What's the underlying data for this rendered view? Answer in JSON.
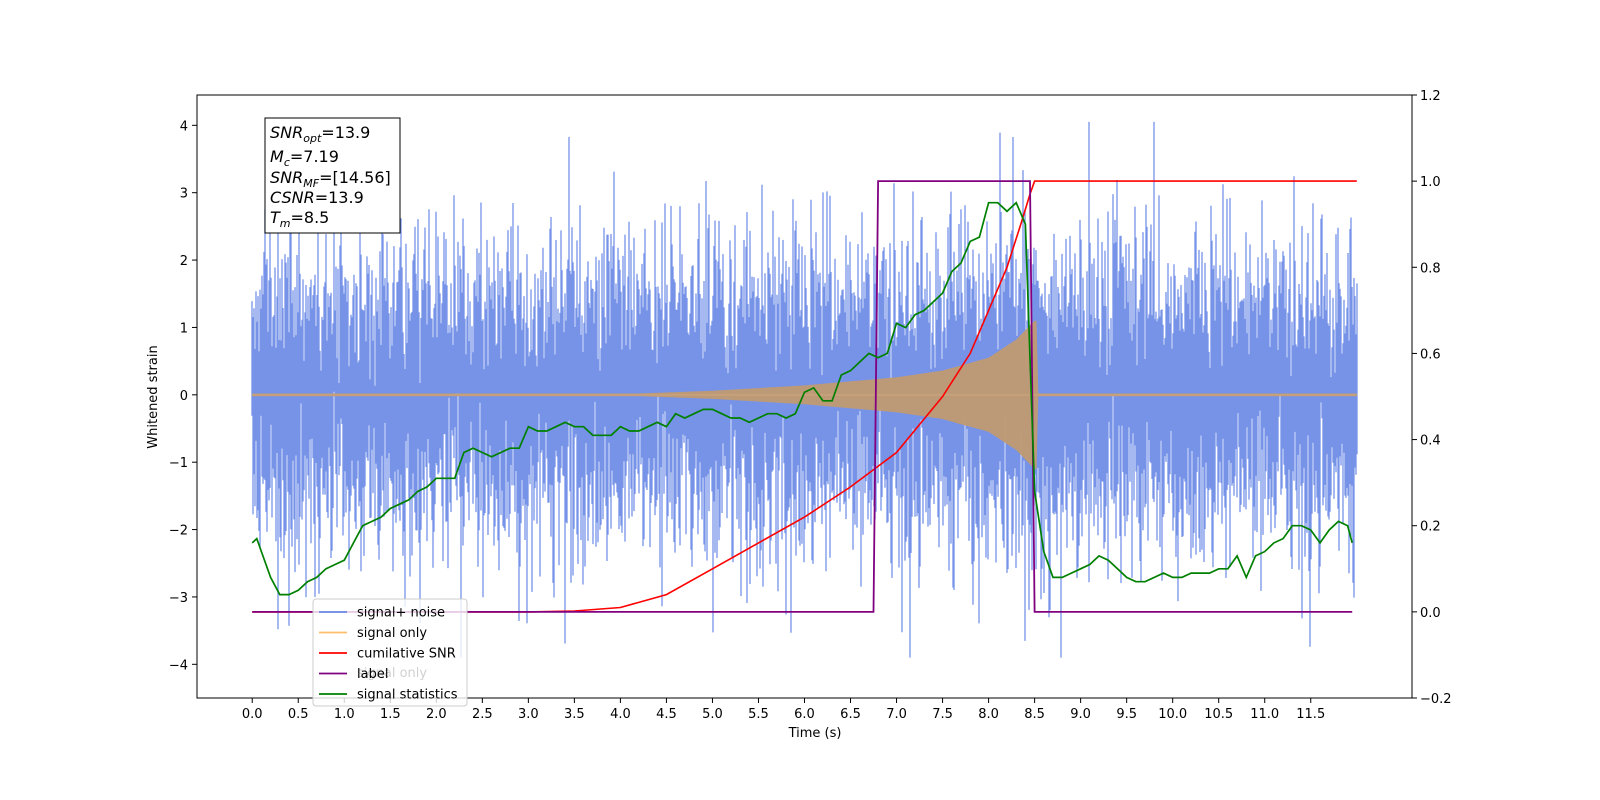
{
  "chart_data": {
    "type": "line",
    "xlabel": "Time (s)",
    "ylabel": "Whitened strain",
    "xlim": [
      -0.6,
      12.6
    ],
    "ylim": [
      -4.5,
      4.45
    ],
    "y2lim": [
      -0.2,
      1.2
    ],
    "x_ticks": [
      "0.0",
      "0.5",
      "1.0",
      "1.5",
      "2.0",
      "2.5",
      "3.0",
      "3.5",
      "4.0",
      "4.5",
      "5.0",
      "5.5",
      "6.0",
      "6.5",
      "7.0",
      "7.5",
      "8.0",
      "8.5",
      "9.0",
      "9.5",
      "10.0",
      "10.5",
      "11.0",
      "11.5"
    ],
    "y_ticks": [
      "4",
      "3",
      "2",
      "1",
      "0",
      "−1",
      "−2",
      "−3",
      "−4"
    ],
    "y2_ticks": [
      "1.2",
      "1.0",
      "0.8",
      "0.6",
      "0.4",
      "0.2",
      "0.0",
      "−0.2"
    ],
    "annotation": {
      "lines": [
        {
          "sym": "SNR",
          "sub": "opt",
          "val": "=13.9"
        },
        {
          "sym": "M",
          "sub": "c",
          "val": "=7.19"
        },
        {
          "sym": "SNR",
          "sub": "MF",
          "val": "=[14.56]"
        },
        {
          "sym": "CSNR",
          "sub": "",
          "val": "=13.9"
        },
        {
          "sym": "T",
          "sub": "m",
          "val": "=8.5"
        }
      ]
    },
    "legend": {
      "placement": "lower-left",
      "entries": [
        {
          "label": "signal+ noise",
          "color": "#6a8ae6"
        },
        {
          "label": "signal only",
          "color": "#ffbe6a"
        },
        {
          "label": "cumilative SNR",
          "color": "#ff0000"
        },
        {
          "label": "label",
          "color": "#800080"
        },
        {
          "label": "signal statistics",
          "color": "#008000"
        }
      ],
      "hidden_text": "signal only"
    },
    "series": [
      {
        "name": "signal+ noise",
        "axis": "left",
        "color": "#6a8ae6",
        "description": "white noise of roughly unit variance plus signal, sampled from 0 to 12 s",
        "x_range": [
          0.0,
          12.0
        ],
        "std": 1.0
      },
      {
        "name": "signal only",
        "axis": "left",
        "color": "#ffbe6a",
        "description": "chirp with amplitude growing toward merger",
        "x_range": [
          0.0,
          12.0
        ],
        "merger_time": 8.5,
        "envelope": {
          "x": [
            0.0,
            4.0,
            5.0,
            6.0,
            7.0,
            7.5,
            8.0,
            8.3,
            8.5
          ],
          "y": [
            0.0,
            0.01,
            0.06,
            0.14,
            0.26,
            0.36,
            0.55,
            0.82,
            1.1
          ]
        }
      },
      {
        "name": "cumilative SNR",
        "axis": "right",
        "color": "#ff0000",
        "x": [
          0.0,
          3.0,
          3.5,
          4.0,
          4.5,
          5.0,
          5.5,
          6.0,
          6.5,
          7.0,
          7.5,
          7.8,
          8.0,
          8.2,
          8.35,
          8.45,
          8.5,
          8.52,
          12.0
        ],
        "y": [
          0.0,
          0.0,
          0.002,
          0.01,
          0.04,
          0.1,
          0.16,
          0.22,
          0.29,
          0.37,
          0.5,
          0.6,
          0.7,
          0.8,
          0.9,
          0.97,
          1.0,
          1.0,
          1.0
        ]
      },
      {
        "name": "label",
        "axis": "right",
        "color": "#800080",
        "x": [
          0.0,
          6.75,
          6.8,
          8.45,
          8.5,
          11.95
        ],
        "y": [
          0.0,
          0.0,
          1.0,
          1.0,
          0.0,
          0.0
        ]
      },
      {
        "name": "signal statistics",
        "axis": "right",
        "color": "#008000",
        "x": [
          0.0,
          0.05,
          0.1,
          0.2,
          0.3,
          0.4,
          0.5,
          0.6,
          0.7,
          0.8,
          0.9,
          1.0,
          1.1,
          1.2,
          1.3,
          1.4,
          1.5,
          1.6,
          1.7,
          1.8,
          1.9,
          2.0,
          2.1,
          2.2,
          2.3,
          2.4,
          2.5,
          2.6,
          2.7,
          2.8,
          2.9,
          3.0,
          3.1,
          3.2,
          3.3,
          3.4,
          3.5,
          3.6,
          3.7,
          3.8,
          3.9,
          4.0,
          4.1,
          4.2,
          4.3,
          4.4,
          4.5,
          4.6,
          4.7,
          4.8,
          4.9,
          5.0,
          5.1,
          5.2,
          5.3,
          5.4,
          5.5,
          5.6,
          5.7,
          5.8,
          5.9,
          6.0,
          6.1,
          6.2,
          6.3,
          6.4,
          6.5,
          6.6,
          6.7,
          6.8,
          6.9,
          7.0,
          7.1,
          7.2,
          7.3,
          7.4,
          7.5,
          7.6,
          7.7,
          7.8,
          7.9,
          8.0,
          8.1,
          8.2,
          8.3,
          8.4,
          8.5,
          8.6,
          8.7,
          8.8,
          8.9,
          9.0,
          9.1,
          9.2,
          9.3,
          9.4,
          9.5,
          9.6,
          9.7,
          9.8,
          9.9,
          10.0,
          10.1,
          10.2,
          10.3,
          10.4,
          10.5,
          10.6,
          10.7,
          10.8,
          10.9,
          11.0,
          11.1,
          11.2,
          11.3,
          11.4,
          11.5,
          11.6,
          11.7,
          11.8,
          11.9,
          11.95
        ],
        "y": [
          0.16,
          0.17,
          0.14,
          0.08,
          0.04,
          0.04,
          0.05,
          0.07,
          0.08,
          0.1,
          0.11,
          0.12,
          0.16,
          0.2,
          0.21,
          0.22,
          0.24,
          0.25,
          0.26,
          0.28,
          0.29,
          0.31,
          0.31,
          0.31,
          0.37,
          0.38,
          0.37,
          0.36,
          0.37,
          0.38,
          0.38,
          0.43,
          0.42,
          0.42,
          0.43,
          0.44,
          0.43,
          0.43,
          0.41,
          0.41,
          0.41,
          0.43,
          0.42,
          0.42,
          0.43,
          0.44,
          0.43,
          0.46,
          0.45,
          0.46,
          0.47,
          0.47,
          0.46,
          0.45,
          0.45,
          0.44,
          0.45,
          0.46,
          0.46,
          0.45,
          0.46,
          0.51,
          0.52,
          0.49,
          0.49,
          0.55,
          0.56,
          0.58,
          0.6,
          0.59,
          0.6,
          0.67,
          0.66,
          0.69,
          0.7,
          0.72,
          0.74,
          0.79,
          0.81,
          0.86,
          0.87,
          0.95,
          0.95,
          0.93,
          0.95,
          0.9,
          0.28,
          0.14,
          0.08,
          0.08,
          0.09,
          0.1,
          0.11,
          0.13,
          0.12,
          0.1,
          0.08,
          0.07,
          0.07,
          0.08,
          0.09,
          0.08,
          0.08,
          0.09,
          0.09,
          0.09,
          0.1,
          0.1,
          0.13,
          0.08,
          0.13,
          0.14,
          0.16,
          0.17,
          0.2,
          0.2,
          0.19,
          0.16,
          0.19,
          0.21,
          0.2,
          0.16
        ]
      }
    ]
  }
}
